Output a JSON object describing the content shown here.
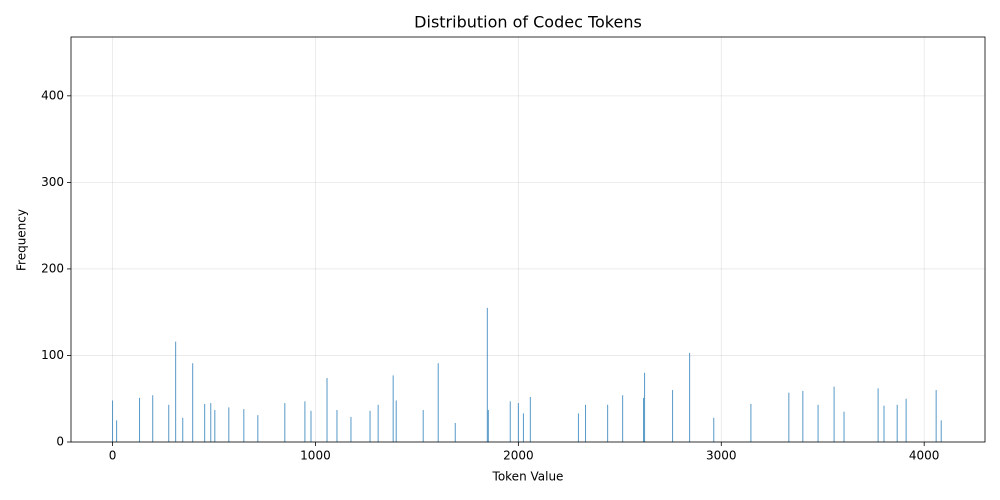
{
  "chart_data": {
    "type": "bar",
    "title": "Distribution of Codec Tokens",
    "xlabel": "Token Value",
    "ylabel": "Frequency",
    "x": [
      0,
      20,
      133,
      198,
      277,
      311,
      346,
      395,
      454,
      484,
      504,
      573,
      647,
      716,
      849,
      948,
      978,
      1057,
      1106,
      1175,
      1269,
      1309,
      1383,
      1398,
      1531,
      1605,
      1689,
      1847,
      1852,
      1960,
      2000,
      2025,
      2059,
      2296,
      2331,
      2440,
      2514,
      2617,
      2622,
      2760,
      2844,
      2963,
      3146,
      3333,
      3402,
      3477,
      3556,
      3605,
      3773,
      3802,
      3867,
      3911,
      4059,
      4084
    ],
    "values": [
      48,
      25,
      51,
      54,
      43,
      116,
      28,
      91,
      44,
      45,
      37,
      40,
      38,
      31,
      45,
      47,
      36,
      74,
      37,
      29,
      36,
      43,
      77,
      48,
      37,
      91,
      22,
      155,
      37,
      47,
      45,
      33,
      52,
      33,
      43,
      43,
      54,
      51,
      80,
      60,
      103,
      28,
      44,
      57,
      59,
      43,
      64,
      35,
      62,
      42,
      43,
      50,
      60,
      25
    ],
    "color": "#1f77b4",
    "xlim": [
      -204.75,
      4299.75
    ],
    "xticks": [
      0,
      1000,
      2000,
      3000,
      4000
    ],
    "ylim": [
      0,
      468
    ],
    "yticks": [
      0,
      100,
      200,
      300,
      400
    ],
    "grid": true
  }
}
